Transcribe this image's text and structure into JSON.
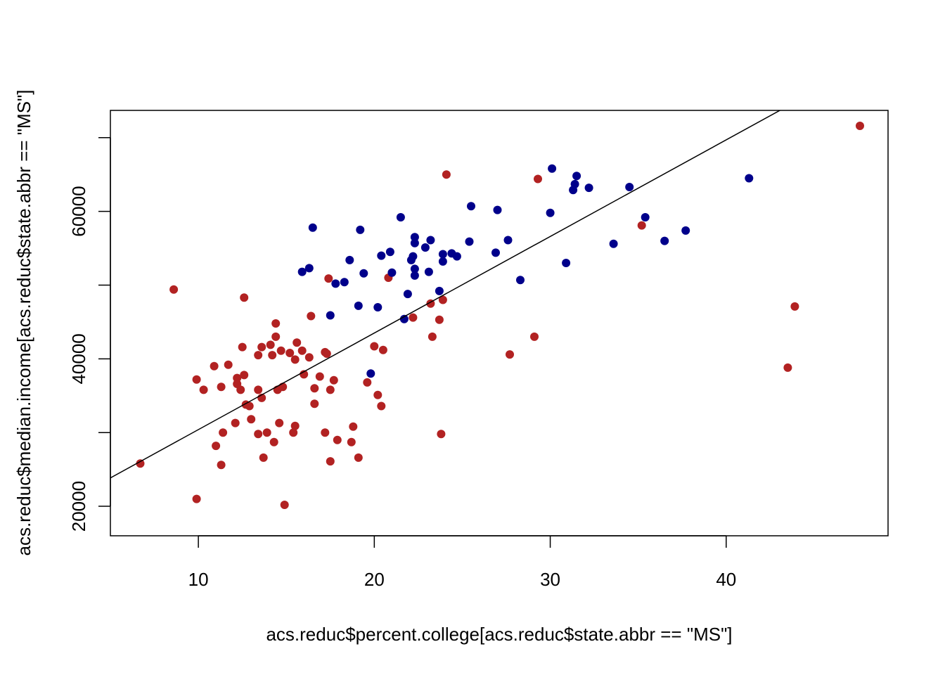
{
  "chart_data": {
    "type": "scatter",
    "title": "",
    "xlabel": "acs.reduc$percent.college[acs.reduc$state.abbr == \"MS\"]",
    "ylabel": "acs.reduc$median.income[acs.reduc$state.abbr == \"MS\"]",
    "xlim": [
      5,
      49.2
    ],
    "ylim": [
      16000,
      73700
    ],
    "x_ticks": [
      10,
      20,
      30,
      40
    ],
    "x_tick_labels": [
      "10",
      "20",
      "30",
      "40"
    ],
    "y_ticks": [
      20000,
      40000,
      60000
    ],
    "y_tick_labels": [
      "20000",
      "40000",
      "60000"
    ],
    "y_tick_positions": [
      20000,
      30000,
      40000,
      50000,
      60000,
      70000
    ],
    "grid": false,
    "legend": "none",
    "fit_line": {
      "intercept": 17300,
      "slope": 1310
    },
    "colors": {
      "series_1": "#b22222",
      "series_2": "#00008b",
      "line": "#000000",
      "frame": "#000000"
    },
    "series": [
      {
        "color": "#b22222",
        "points": [
          [
            6.7,
            25800
          ],
          [
            8.6,
            49400
          ],
          [
            9.9,
            21000
          ],
          [
            9.9,
            37200
          ],
          [
            10.3,
            35800
          ],
          [
            10.9,
            39000
          ],
          [
            11.0,
            28200
          ],
          [
            11.3,
            25600
          ],
          [
            11.3,
            36200
          ],
          [
            11.4,
            30000
          ],
          [
            11.7,
            39200
          ],
          [
            12.1,
            31300
          ],
          [
            12.2,
            36600
          ],
          [
            12.2,
            37400
          ],
          [
            12.4,
            35800
          ],
          [
            12.5,
            41600
          ],
          [
            12.6,
            37800
          ],
          [
            12.6,
            48300
          ],
          [
            12.7,
            33800
          ],
          [
            12.9,
            33600
          ],
          [
            13.0,
            31800
          ],
          [
            13.4,
            40500
          ],
          [
            13.4,
            35800
          ],
          [
            13.4,
            29800
          ],
          [
            13.6,
            34700
          ],
          [
            13.6,
            41600
          ],
          [
            13.7,
            26600
          ],
          [
            13.9,
            30000
          ],
          [
            14.1,
            41900
          ],
          [
            14.2,
            40500
          ],
          [
            14.3,
            28700
          ],
          [
            14.4,
            44800
          ],
          [
            14.4,
            43000
          ],
          [
            14.5,
            35800
          ],
          [
            14.6,
            31300
          ],
          [
            14.7,
            41100
          ],
          [
            14.8,
            36200
          ],
          [
            14.9,
            20200
          ],
          [
            15.2,
            40800
          ],
          [
            15.4,
            30000
          ],
          [
            15.5,
            30900
          ],
          [
            15.5,
            39900
          ],
          [
            15.6,
            42200
          ],
          [
            15.9,
            41100
          ],
          [
            16.0,
            37900
          ],
          [
            16.3,
            40200
          ],
          [
            16.4,
            45800
          ],
          [
            16.6,
            36000
          ],
          [
            16.6,
            33900
          ],
          [
            16.9,
            37600
          ],
          [
            17.2,
            30000
          ],
          [
            17.2,
            40900
          ],
          [
            17.3,
            40700
          ],
          [
            17.4,
            50900
          ],
          [
            17.5,
            26100
          ],
          [
            17.5,
            35800
          ],
          [
            17.7,
            37100
          ],
          [
            17.9,
            29000
          ],
          [
            18.7,
            28700
          ],
          [
            18.8,
            30800
          ],
          [
            19.1,
            26600
          ],
          [
            19.6,
            36800
          ],
          [
            20.0,
            41700
          ],
          [
            20.2,
            35100
          ],
          [
            20.4,
            33600
          ],
          [
            20.5,
            41200
          ],
          [
            20.8,
            51000
          ],
          [
            22.2,
            45600
          ],
          [
            23.2,
            47500
          ],
          [
            23.3,
            43000
          ],
          [
            23.7,
            45300
          ],
          [
            23.8,
            29800
          ],
          [
            23.9,
            48000
          ],
          [
            24.1,
            65000
          ],
          [
            27.7,
            40600
          ],
          [
            29.1,
            43000
          ],
          [
            29.3,
            64400
          ],
          [
            35.2,
            58100
          ],
          [
            43.5,
            38800
          ],
          [
            43.9,
            47100
          ],
          [
            47.6,
            71600
          ]
        ]
      },
      {
        "color": "#00008b",
        "points": [
          [
            15.9,
            51800
          ],
          [
            16.3,
            52300
          ],
          [
            16.5,
            57800
          ],
          [
            17.5,
            45900
          ],
          [
            17.8,
            50200
          ],
          [
            18.3,
            50400
          ],
          [
            18.6,
            53400
          ],
          [
            19.1,
            47200
          ],
          [
            19.2,
            57500
          ],
          [
            19.4,
            51600
          ],
          [
            19.8,
            38000
          ],
          [
            20.2,
            47000
          ],
          [
            20.4,
            54000
          ],
          [
            20.9,
            54500
          ],
          [
            21.0,
            51700
          ],
          [
            21.5,
            59200
          ],
          [
            21.7,
            45400
          ],
          [
            21.9,
            48800
          ],
          [
            22.1,
            53400
          ],
          [
            22.2,
            53900
          ],
          [
            22.3,
            52200
          ],
          [
            22.3,
            55700
          ],
          [
            22.3,
            56500
          ],
          [
            22.3,
            51300
          ],
          [
            22.9,
            55100
          ],
          [
            23.1,
            51800
          ],
          [
            23.2,
            56100
          ],
          [
            23.7,
            49200
          ],
          [
            23.9,
            54200
          ],
          [
            23.9,
            53200
          ],
          [
            24.4,
            54300
          ],
          [
            24.7,
            53900
          ],
          [
            25.4,
            55900
          ],
          [
            25.5,
            60700
          ],
          [
            26.9,
            54400
          ],
          [
            27.0,
            60200
          ],
          [
            27.6,
            56100
          ],
          [
            28.3,
            50700
          ],
          [
            30.0,
            59800
          ],
          [
            30.1,
            65800
          ],
          [
            30.9,
            53000
          ],
          [
            31.3,
            62900
          ],
          [
            31.4,
            63700
          ],
          [
            31.5,
            64800
          ],
          [
            32.2,
            63200
          ],
          [
            33.6,
            55600
          ],
          [
            34.5,
            63300
          ],
          [
            35.4,
            59200
          ],
          [
            36.5,
            56000
          ],
          [
            37.7,
            57400
          ],
          [
            41.3,
            64500
          ]
        ]
      }
    ]
  }
}
